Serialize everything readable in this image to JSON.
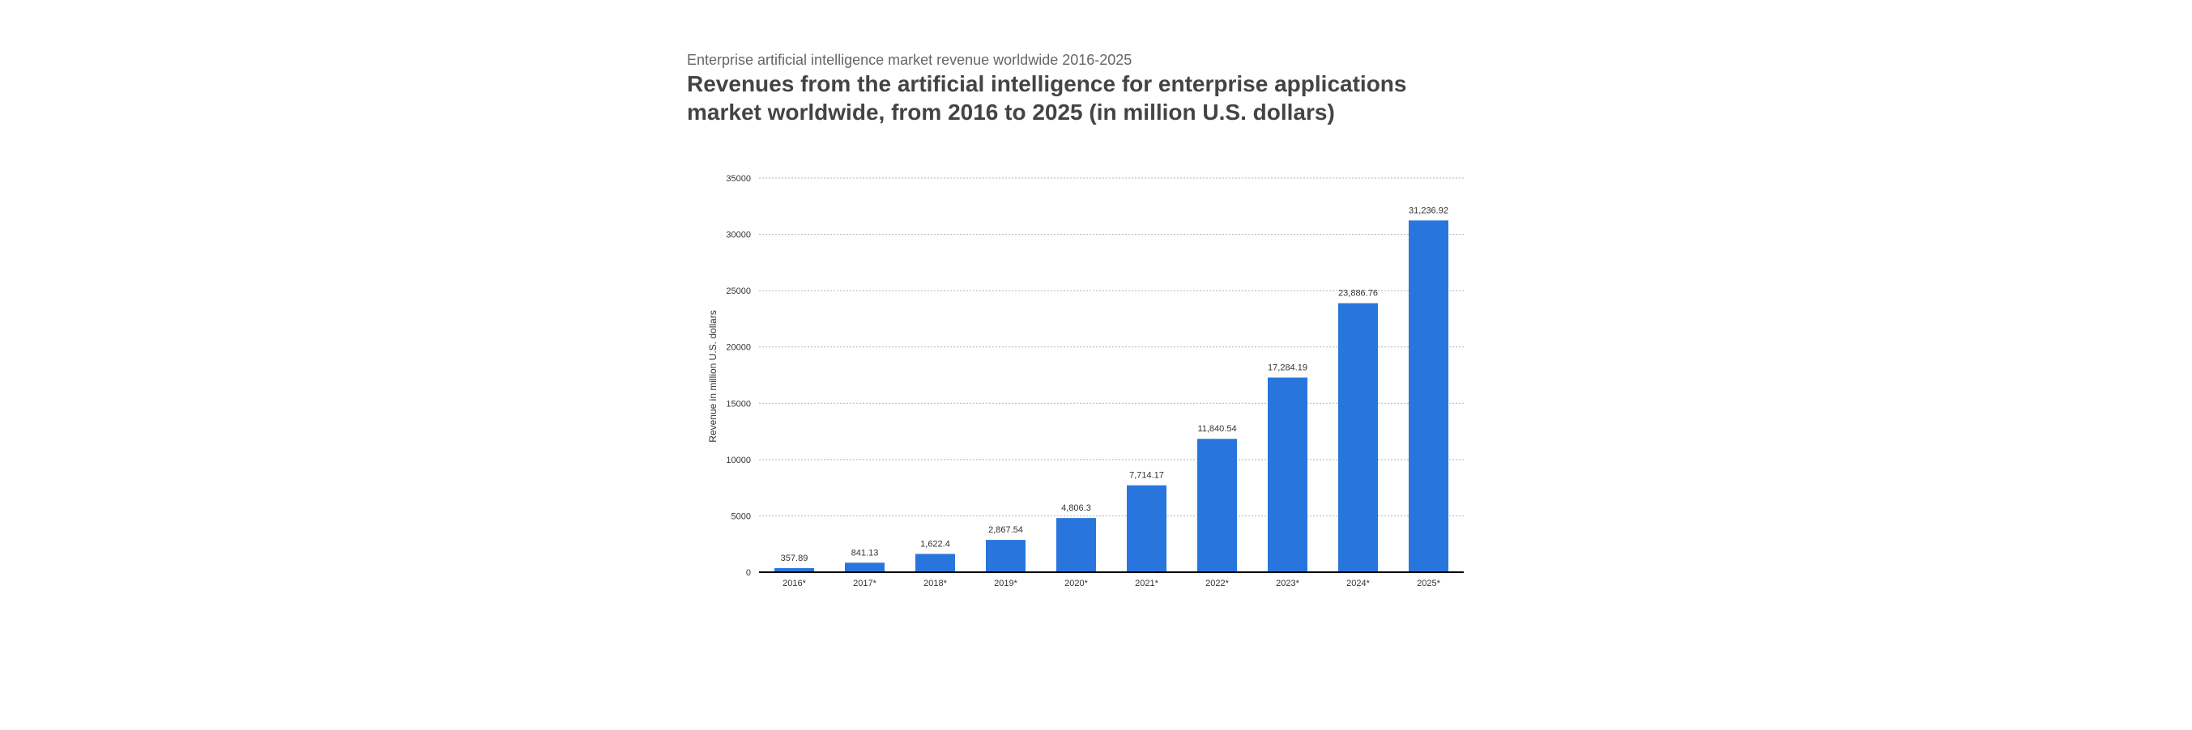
{
  "header": {
    "supertitle": "Enterprise artificial intelligence market revenue worldwide 2016-2025",
    "title": "Revenues from the artificial intelligence for enterprise applications market worldwide, from 2016 to 2025 (in million U.S. dollars)"
  },
  "colors": {
    "bar": "#2876dd",
    "grid": "#b3b3b3",
    "axis": "#000000"
  },
  "chart_data": {
    "type": "bar",
    "title": "",
    "xlabel": "",
    "ylabel": "Revenue in million U.S. dollars",
    "categories": [
      "2016*",
      "2017*",
      "2018*",
      "2019*",
      "2020*",
      "2021*",
      "2022*",
      "2023*",
      "2024*",
      "2025*"
    ],
    "values": [
      357.89,
      841.13,
      1622.4,
      2867.54,
      4806.3,
      7714.17,
      11840.54,
      17284.19,
      23886.76,
      31236.92
    ],
    "value_labels": [
      "357.89",
      "841.13",
      "1,622.4",
      "2,867.54",
      "4,806.3",
      "7,714.17",
      "11,840.54",
      "17,284.19",
      "23,886.76",
      "31,236.92"
    ],
    "yticks": [
      0,
      5000,
      10000,
      15000,
      20000,
      25000,
      30000,
      35000
    ],
    "ylim": [
      0,
      35000
    ],
    "grid": true,
    "legend": "none"
  }
}
